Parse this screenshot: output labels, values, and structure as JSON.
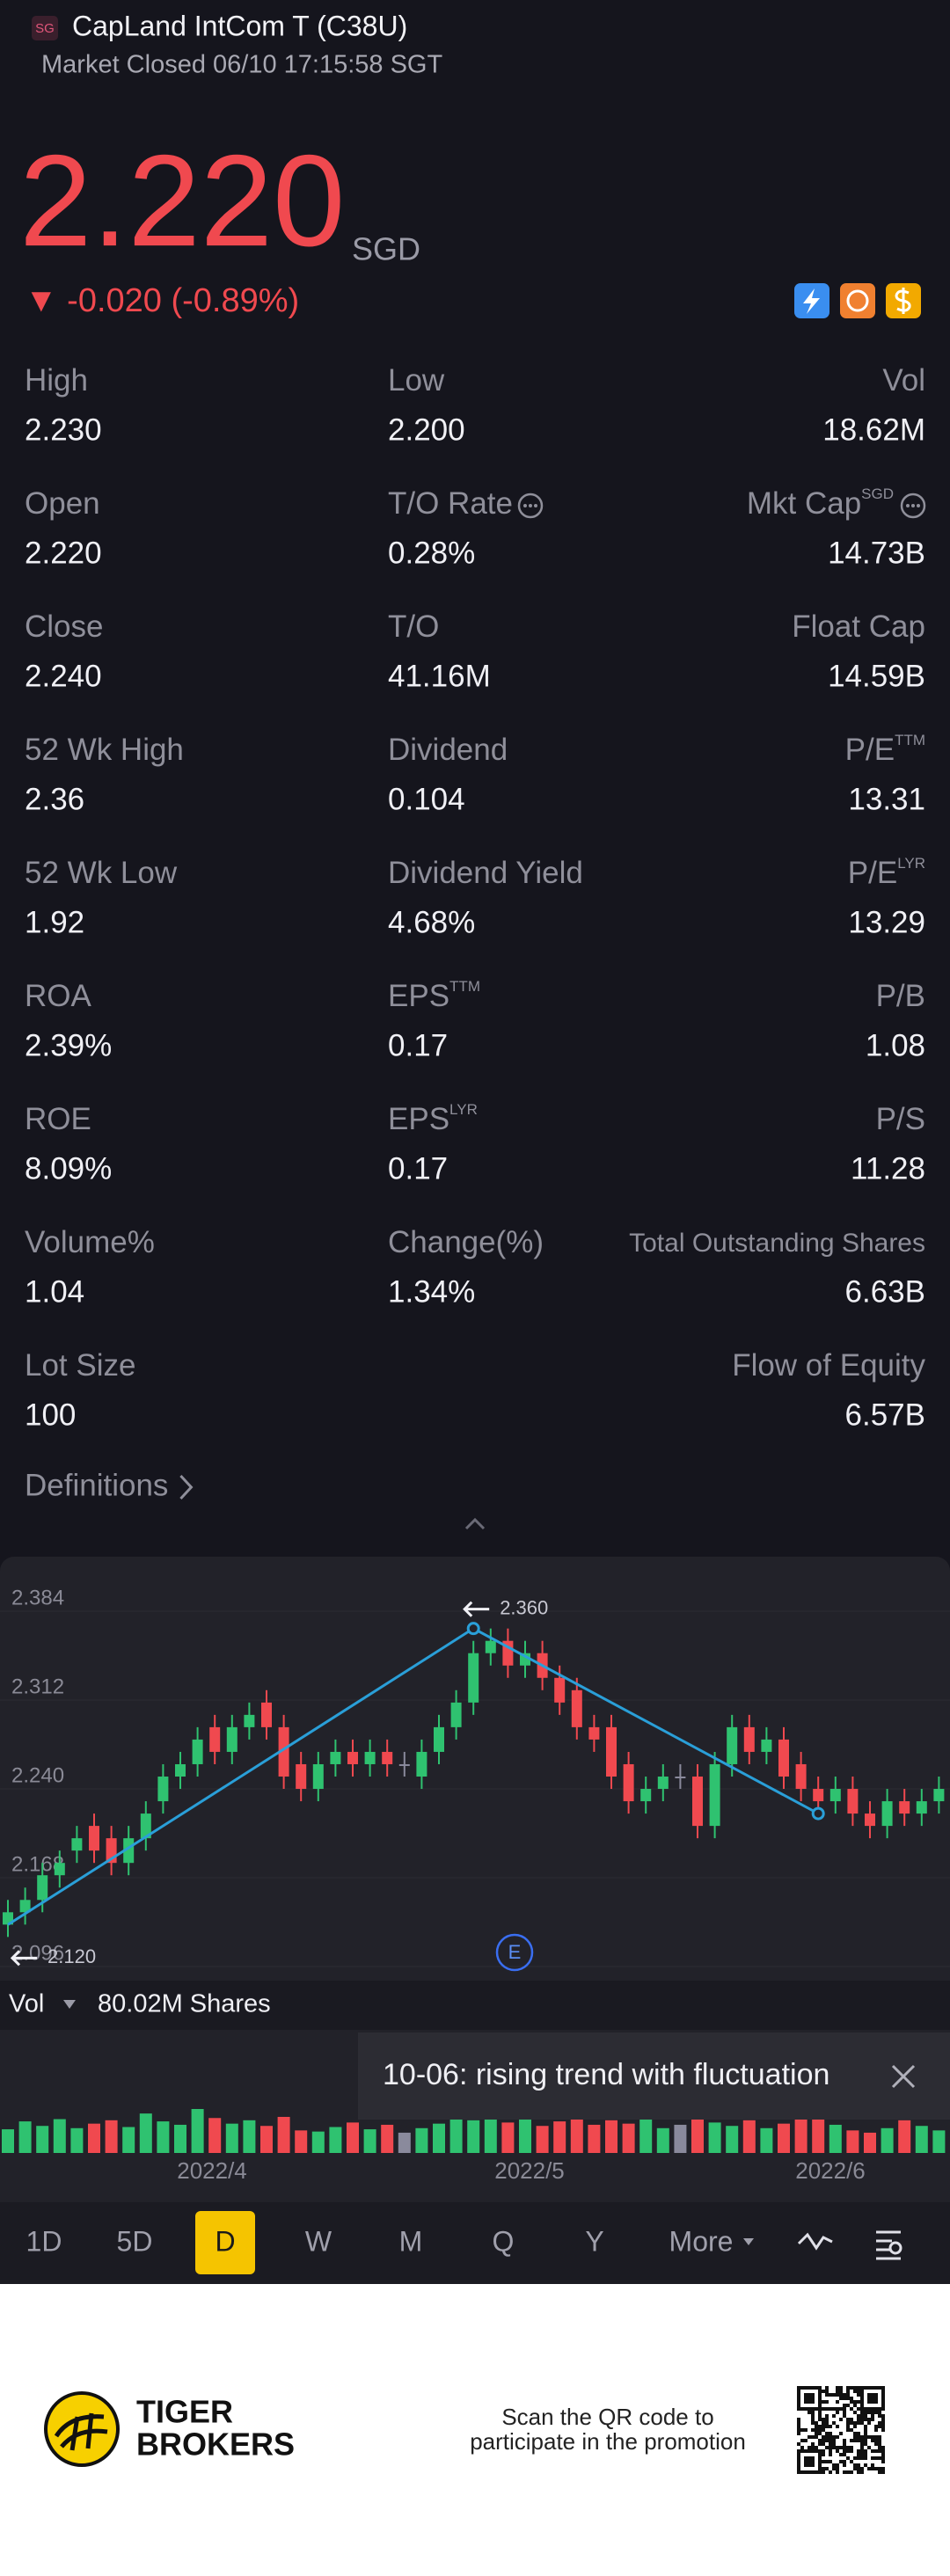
{
  "header": {
    "badge": "SG",
    "title": "CapLand IntCom T (C38U)",
    "status": "Market Closed 06/10 17:15:58 SGT"
  },
  "quote": {
    "price": "2.220",
    "currency": "SGD",
    "change": "▼ -0.020 (-0.89%)"
  },
  "stats": [
    [
      {
        "label": "High",
        "value": "2.230"
      },
      {
        "label": "Low",
        "value": "2.200"
      },
      {
        "label": "Vol",
        "value": "18.62M"
      }
    ],
    [
      {
        "label": "Open",
        "value": "2.220"
      },
      {
        "label": "T/O Rate",
        "value": "0.28%",
        "info": true
      },
      {
        "label": "Mkt Cap",
        "sup": "SGD",
        "value": "14.73B",
        "info": true
      }
    ],
    [
      {
        "label": "Close",
        "value": "2.240"
      },
      {
        "label": "T/O",
        "value": "41.16M"
      },
      {
        "label": "Float Cap",
        "value": "14.59B"
      }
    ],
    [
      {
        "label": "52 Wk High",
        "value": "2.36"
      },
      {
        "label": "Dividend",
        "value": "0.104"
      },
      {
        "label": "P/E",
        "sup": "TTM",
        "value": "13.31"
      }
    ],
    [
      {
        "label": "52 Wk Low",
        "value": "1.92"
      },
      {
        "label": "Dividend Yield",
        "value": "4.68%"
      },
      {
        "label": "P/E",
        "sup": "LYR",
        "value": "13.29"
      }
    ],
    [
      {
        "label": "ROA",
        "value": "2.39%"
      },
      {
        "label": "EPS",
        "sup": "TTM",
        "value": "0.17"
      },
      {
        "label": "P/B",
        "value": "1.08"
      }
    ],
    [
      {
        "label": "ROE",
        "value": "8.09%"
      },
      {
        "label": "EPS",
        "sup": "LYR",
        "value": "0.17"
      },
      {
        "label": "P/S",
        "value": "11.28"
      }
    ],
    [
      {
        "label": "Volume%",
        "value": "1.04"
      },
      {
        "label": "Change(%)",
        "value": "1.34%"
      },
      {
        "label": "Total Outstanding Shares",
        "value": "6.63B"
      }
    ],
    [
      {
        "label": "Lot Size",
        "value": "100"
      },
      null,
      {
        "label": "Flow of Equity",
        "value": "6.57B"
      }
    ]
  ],
  "definitions": "Definitions",
  "chart_data": {
    "type": "candlestick",
    "ylim": [
      2.096,
      2.384
    ],
    "yticks": [
      2.384,
      2.312,
      {
        "value": 2.24,
        "label": "2.240"
      },
      2.168,
      2.096
    ],
    "up_color": "#2fc270",
    "down_color": "#f0494f",
    "flat_color": "#8a8a9c",
    "open": [
      2.12,
      2.13,
      2.14,
      2.16,
      2.18,
      2.2,
      2.19,
      2.17,
      2.19,
      2.22,
      2.24,
      2.25,
      2.28,
      2.26,
      2.28,
      2.3,
      2.28,
      2.25,
      2.23,
      2.25,
      2.26,
      2.25,
      2.26,
      2.25,
      2.24,
      2.26,
      2.28,
      2.3,
      2.34,
      2.35,
      2.33,
      2.34,
      2.32,
      2.31,
      2.28,
      2.28,
      2.25,
      2.22,
      2.23,
      2.24,
      2.24,
      2.2,
      2.25,
      2.28,
      2.26,
      2.27,
      2.25,
      2.23,
      2.22,
      2.23,
      2.21,
      2.2,
      2.22,
      2.21,
      2.22
    ],
    "high": [
      2.14,
      2.15,
      2.17,
      2.18,
      2.2,
      2.21,
      2.2,
      2.2,
      2.22,
      2.25,
      2.26,
      2.28,
      2.29,
      2.29,
      2.3,
      2.31,
      2.29,
      2.26,
      2.26,
      2.27,
      2.27,
      2.27,
      2.27,
      2.26,
      2.27,
      2.29,
      2.31,
      2.35,
      2.36,
      2.36,
      2.35,
      2.35,
      2.33,
      2.32,
      2.29,
      2.29,
      2.26,
      2.24,
      2.25,
      2.25,
      2.25,
      2.26,
      2.29,
      2.29,
      2.28,
      2.28,
      2.26,
      2.24,
      2.24,
      2.24,
      2.22,
      2.23,
      2.23,
      2.23,
      2.24
    ],
    "low": [
      2.11,
      2.12,
      2.13,
      2.15,
      2.17,
      2.17,
      2.16,
      2.16,
      2.18,
      2.21,
      2.23,
      2.24,
      2.25,
      2.25,
      2.27,
      2.27,
      2.23,
      2.22,
      2.22,
      2.24,
      2.24,
      2.24,
      2.24,
      2.24,
      2.23,
      2.25,
      2.27,
      2.29,
      2.33,
      2.32,
      2.32,
      2.31,
      2.29,
      2.27,
      2.26,
      2.23,
      2.21,
      2.21,
      2.22,
      2.23,
      2.19,
      2.19,
      2.24,
      2.25,
      2.25,
      2.23,
      2.22,
      2.21,
      2.21,
      2.2,
      2.19,
      2.19,
      2.2,
      2.2,
      2.21
    ],
    "close": [
      2.13,
      2.14,
      2.16,
      2.17,
      2.19,
      2.18,
      2.17,
      2.19,
      2.21,
      2.24,
      2.25,
      2.27,
      2.26,
      2.28,
      2.29,
      2.28,
      2.24,
      2.23,
      2.25,
      2.26,
      2.25,
      2.26,
      2.25,
      2.25,
      2.26,
      2.28,
      2.3,
      2.34,
      2.35,
      2.33,
      2.34,
      2.32,
      2.3,
      2.28,
      2.27,
      2.24,
      2.22,
      2.23,
      2.24,
      2.24,
      2.2,
      2.25,
      2.28,
      2.26,
      2.27,
      2.24,
      2.23,
      2.22,
      2.23,
      2.21,
      2.2,
      2.22,
      2.21,
      2.22,
      2.23
    ],
    "trend": {
      "color": "#2a9fd8",
      "x": [
        0,
        27,
        47
      ],
      "y": [
        2.12,
        2.36,
        2.21
      ],
      "value_labels": [
        "2.120",
        "2.360",
        null
      ]
    },
    "event_marker": "E",
    "volume": {
      "label": "Vol",
      "total": "80.02M Shares",
      "values": [
        2.1,
        2.8,
        2.4,
        3.0,
        2.2,
        2.6,
        2.9,
        2.3,
        3.5,
        2.8,
        2.5,
        3.9,
        3.1,
        2.6,
        2.9,
        2.4,
        3.2,
        2.0,
        1.9,
        2.3,
        2.7,
        2.1,
        2.5,
        1.8,
        2.2,
        2.6,
        3.4,
        2.9,
        3.6,
        2.7,
        3.1,
        2.4,
        2.8,
        3.3,
        2.5,
        2.9,
        2.6,
        3.0,
        2.2,
        2.5,
        3.8,
        2.7,
        2.4,
        2.9,
        2.2,
        2.6,
        3.0,
        3.7,
        2.5,
        2.0,
        1.8,
        2.2,
        2.9,
        2.4,
        2.0
      ]
    },
    "x_labels": [
      "2022/4",
      "2022/5",
      "2022/6"
    ]
  },
  "tooltip": "10-06: rising trend with fluctuation",
  "periods": [
    "1D",
    "5D",
    "D",
    "W",
    "M",
    "Q",
    "Y",
    "More"
  ],
  "active_period": 2,
  "footer": {
    "brand": [
      "TIGER",
      "BROKERS"
    ],
    "promo": [
      "Scan the QR code to",
      "participate in the promotion"
    ]
  }
}
